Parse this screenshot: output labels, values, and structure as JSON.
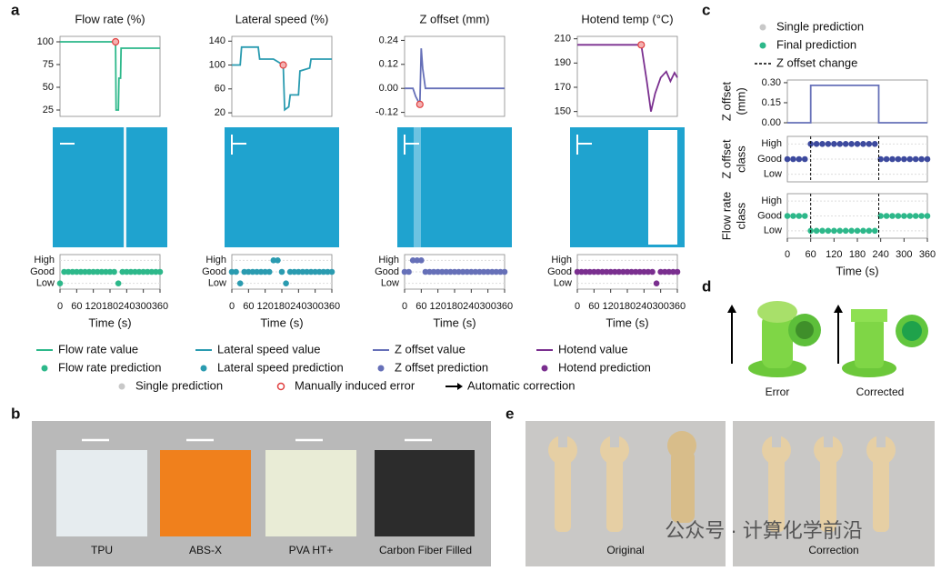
{
  "panel_labels": [
    "a",
    "b",
    "c",
    "d",
    "e"
  ],
  "chart_data": [
    {
      "type": "line",
      "title": "Flow rate (%)",
      "color": "#2db88a",
      "xlim": [
        0,
        360
      ],
      "ylim": [
        18,
        106
      ],
      "yticks": [
        25,
        50,
        75,
        100
      ],
      "x": [
        0,
        200,
        202,
        210,
        212,
        218,
        220,
        360
      ],
      "values": [
        100,
        100,
        25,
        25,
        60,
        60,
        93,
        93
      ],
      "error_point": {
        "x": 200,
        "y": 100
      }
    },
    {
      "type": "line",
      "title": "Lateral speed (%)",
      "color": "#2a9bb0",
      "xlim": [
        0,
        360
      ],
      "ylim": [
        14,
        148
      ],
      "yticks": [
        20,
        60,
        100,
        140
      ],
      "x": [
        0,
        30,
        35,
        95,
        100,
        150,
        185,
        190,
        205,
        210,
        240,
        245,
        280,
        285,
        360
      ],
      "values": [
        100,
        100,
        130,
        130,
        110,
        110,
        100,
        25,
        30,
        50,
        50,
        90,
        95,
        110,
        110
      ],
      "error_point": {
        "x": 185,
        "y": 100
      }
    },
    {
      "type": "line",
      "title": "Z offset (mm)",
      "color": "#6670b8",
      "xlim": [
        0,
        360
      ],
      "ylim": [
        -0.14,
        0.26
      ],
      "yticks": [
        {
          "value": -0.12,
          "label": "-0.12"
        },
        {
          "value": 0,
          "label": "0.00"
        },
        0.12,
        0.24
      ],
      "x": [
        0,
        30,
        40,
        55,
        60,
        65,
        75,
        360
      ],
      "values": [
        0,
        0,
        -0.04,
        -0.08,
        0.2,
        0.1,
        0,
        0
      ],
      "error_point": {
        "x": 55,
        "y": -0.08
      }
    },
    {
      "type": "line",
      "title": "Hotend temp (°C)",
      "color": "#7a2f8f",
      "xlim": [
        0,
        360
      ],
      "ylim": [
        146,
        212
      ],
      "yticks": [
        150,
        170,
        190,
        210
      ],
      "x": [
        0,
        230,
        250,
        265,
        280,
        300,
        320,
        335,
        350,
        360
      ],
      "values": [
        205,
        205,
        175,
        150,
        165,
        178,
        183,
        175,
        182,
        178
      ],
      "error_point": {
        "x": 230,
        "y": 205
      }
    },
    {
      "type": "scatter",
      "color": "#2db88a",
      "y_categories": [
        "High",
        "Good",
        "Low"
      ],
      "xlim": [
        0,
        360
      ],
      "xticks": [
        0,
        60,
        120,
        180,
        240,
        300,
        360
      ],
      "xlabel": "Time (s)",
      "x": [
        0,
        15,
        30,
        45,
        60,
        75,
        90,
        105,
        120,
        135,
        150,
        165,
        180,
        195,
        210,
        225,
        240,
        255,
        270,
        285,
        300,
        315,
        330,
        345,
        360
      ],
      "values": [
        "Low",
        "Good",
        "Good",
        "Good",
        "Good",
        "Good",
        "Good",
        "Good",
        "Good",
        "Good",
        "Good",
        "Good",
        "Good",
        "Good",
        "Low",
        "Good",
        "Good",
        "Good",
        "Good",
        "Good",
        "Good",
        "Good",
        "Good",
        "Good",
        "Good"
      ]
    },
    {
      "type": "scatter",
      "color": "#2a9bb0",
      "y_categories": [
        "High",
        "Good",
        "Low"
      ],
      "xlim": [
        0,
        360
      ],
      "xticks": [
        0,
        60,
        120,
        180,
        240,
        300,
        360
      ],
      "xlabel": "Time (s)",
      "x": [
        0,
        15,
        30,
        45,
        60,
        75,
        90,
        105,
        120,
        135,
        150,
        165,
        180,
        195,
        210,
        225,
        240,
        255,
        270,
        285,
        300,
        315,
        330,
        345,
        360
      ],
      "values": [
        "Good",
        "Good",
        "Low",
        "Good",
        "Good",
        "Good",
        "Good",
        "Good",
        "Good",
        "Good",
        "High",
        "High",
        "Good",
        "Low",
        "Good",
        "Good",
        "Good",
        "Good",
        "Good",
        "Good",
        "Good",
        "Good",
        "Good",
        "Good",
        "Good"
      ]
    },
    {
      "type": "scatter",
      "color": "#6670b8",
      "y_categories": [
        "High",
        "Good",
        "Low"
      ],
      "xlim": [
        0,
        360
      ],
      "xticks": [
        0,
        60,
        120,
        180,
        240,
        300,
        360
      ],
      "xlabel": "Time (s)",
      "x": [
        0,
        15,
        30,
        45,
        60,
        75,
        90,
        105,
        120,
        135,
        150,
        165,
        180,
        195,
        210,
        225,
        240,
        255,
        270,
        285,
        300,
        315,
        330,
        345,
        360
      ],
      "values": [
        "Good",
        "Good",
        "High",
        "High",
        "High",
        "Good",
        "Good",
        "Good",
        "Good",
        "Good",
        "Good",
        "Good",
        "Good",
        "Good",
        "Good",
        "Good",
        "Good",
        "Good",
        "Good",
        "Good",
        "Good",
        "Good",
        "Good",
        "Good",
        "Good"
      ]
    },
    {
      "type": "scatter",
      "color": "#7a2f8f",
      "y_categories": [
        "High",
        "Good",
        "Low"
      ],
      "xlim": [
        0,
        360
      ],
      "xticks": [
        0,
        60,
        120,
        180,
        240,
        300,
        360
      ],
      "xlabel": "Time (s)",
      "x": [
        0,
        15,
        30,
        45,
        60,
        75,
        90,
        105,
        120,
        135,
        150,
        165,
        180,
        195,
        210,
        225,
        240,
        255,
        270,
        285,
        300,
        315,
        330,
        345,
        360
      ],
      "values": [
        "Good",
        "Good",
        "Good",
        "Good",
        "Good",
        "Good",
        "Good",
        "Good",
        "Good",
        "Good",
        "Good",
        "Good",
        "Good",
        "Good",
        "Good",
        "Good",
        "Good",
        "Good",
        "Good",
        "Low",
        "Good",
        "Good",
        "Good",
        "Good",
        "Good"
      ]
    },
    {
      "type": "line",
      "ylabel": [
        "Z offset",
        "(mm)"
      ],
      "color": "#6670b8",
      "xlim": [
        0,
        360
      ],
      "ylim": [
        0,
        0.32
      ],
      "yticks": [
        {
          "value": 0,
          "label": "0.00"
        },
        0.15,
        {
          "value": 0.3,
          "label": "0.30"
        }
      ],
      "x": [
        0,
        60,
        60,
        235,
        235,
        360
      ],
      "values": [
        0,
        0,
        0.28,
        0.28,
        0,
        0
      ]
    },
    {
      "type": "scatter",
      "ylabel": [
        "Z offset",
        "class"
      ],
      "color": "#3d4a9e",
      "y_categories": [
        "High",
        "Good",
        "Low"
      ],
      "xlim": [
        0,
        360
      ],
      "x": [
        0,
        15,
        30,
        45,
        60,
        75,
        90,
        105,
        120,
        135,
        150,
        165,
        180,
        195,
        210,
        225,
        240,
        255,
        270,
        285,
        300,
        315,
        330,
        345,
        360
      ],
      "values": [
        "Good",
        "Good",
        "Good",
        "Good",
        "High",
        "High",
        "High",
        "High",
        "High",
        "High",
        "High",
        "High",
        "High",
        "High",
        "High",
        "High",
        "Good",
        "Good",
        "Good",
        "Good",
        "Good",
        "Good",
        "Good",
        "Good",
        "Good"
      ]
    },
    {
      "type": "scatter",
      "ylabel": [
        "Flow rate",
        "class"
      ],
      "color": "#2db88a",
      "y_categories": [
        "High",
        "Good",
        "Low"
      ],
      "xlim": [
        0,
        360
      ],
      "xticks": [
        0,
        60,
        120,
        180,
        240,
        300,
        360
      ],
      "xlabel": "Time (s)",
      "x": [
        0,
        15,
        30,
        45,
        60,
        75,
        90,
        105,
        120,
        135,
        150,
        165,
        180,
        195,
        210,
        225,
        240,
        255,
        270,
        285,
        300,
        315,
        330,
        345,
        360
      ],
      "values": [
        "Good",
        "Good",
        "Good",
        "Good",
        "Low",
        "Low",
        "Low",
        "Low",
        "Low",
        "Low",
        "Low",
        "Low",
        "Low",
        "Low",
        "Low",
        "Low",
        "Good",
        "Good",
        "Good",
        "Good",
        "Good",
        "Good",
        "Good",
        "Good",
        "Good"
      ]
    }
  ],
  "z_change_times": [
    60,
    235
  ],
  "legend_a": [
    {
      "label": "Flow rate value",
      "color": "#2db88a",
      "symbol": "line"
    },
    {
      "label": "Lateral speed value",
      "color": "#2a9bb0",
      "symbol": "line"
    },
    {
      "label": "Z offset value",
      "color": "#6670b8",
      "symbol": "line"
    },
    {
      "label": "Hotend value",
      "color": "#7a2f8f",
      "symbol": "line"
    },
    {
      "label": "Flow rate prediction",
      "color": "#2db88a",
      "symbol": "dot"
    },
    {
      "label": "Lateral speed prediction",
      "color": "#2a9bb0",
      "symbol": "dot"
    },
    {
      "label": "Z offset prediction",
      "color": "#6670b8",
      "symbol": "dot"
    },
    {
      "label": "Hotend prediction",
      "color": "#7a2f8f",
      "symbol": "dot"
    },
    {
      "label": "Single prediction",
      "color": "#c8c8c8",
      "symbol": "dot"
    },
    {
      "label": "Manually induced error",
      "color": "#e04040",
      "symbol": "ring"
    },
    {
      "label": "Automatic correction",
      "color": "#000000",
      "symbol": "arrow"
    }
  ],
  "legend_c": [
    {
      "label": "Single prediction",
      "color": "#c8c8c8",
      "symbol": "dot"
    },
    {
      "label": "Final prediction",
      "color": "#2db88a",
      "symbol": "dot"
    },
    {
      "label": "Z offset change",
      "color": "#000000",
      "symbol": "dash"
    }
  ],
  "panel_b": {
    "labels": [
      "TPU",
      "ABS-X",
      "PVA HT+",
      "Carbon Fiber Filled"
    ]
  },
  "panel_d": {
    "labels": [
      "Error",
      "Corrected"
    ]
  },
  "panel_e": {
    "labels": [
      "Original",
      "Correction"
    ],
    "watermark": "公众号 · 计算化学前沿"
  }
}
